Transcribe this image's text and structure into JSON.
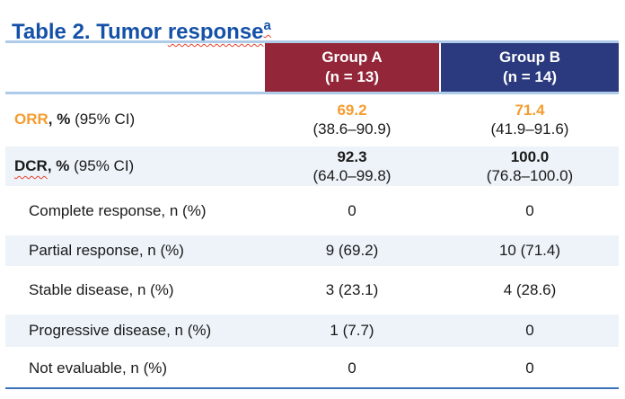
{
  "title": {
    "prefix": "Table 2. Tumor ",
    "flagged_word": "response",
    "superscript": "a"
  },
  "colors": {
    "title_blue": "#1551A8",
    "group_a_bg": "#942639",
    "group_b_bg": "#2B3A7E",
    "row_alt_bg": "#EDF3F9",
    "rule_light": "#AECBE8",
    "rule_bottom": "#3C72B8",
    "accent_orange": "#F59C2E",
    "header_text": "#FFFFFF",
    "body_text": "#1A1A1A",
    "squiggle_red": "#E5432E"
  },
  "table": {
    "header": {
      "group_a": {
        "name": "Group A",
        "n": "(n = 13)"
      },
      "group_b": {
        "name": "Group B",
        "n": "(n = 14)"
      }
    },
    "rows": [
      {
        "label_em": "ORR",
        "label_bold": ", %",
        "label_rest": " (95% CI)",
        "group_a": {
          "value": "69.2",
          "ci": "(38.6–90.9)"
        },
        "group_b": {
          "value": "71.4",
          "ci": "(41.9–91.6)"
        }
      },
      {
        "label_em": "DCR",
        "label_bold": ", %",
        "label_rest": " (95% CI)",
        "group_a": {
          "value": "92.3",
          "ci": "(64.0–99.8)"
        },
        "group_b": {
          "value": "100.0",
          "ci": "(76.8–100.0)"
        }
      },
      {
        "label": "Complete response, n (%)",
        "group_a": "0",
        "group_b": "0"
      },
      {
        "label": "Partial response, n (%)",
        "group_a": "9 (69.2)",
        "group_b": "10 (71.4)"
      },
      {
        "label": "Stable disease, n (%)",
        "group_a": "3 (23.1)",
        "group_b": "4 (28.6)"
      },
      {
        "label": "Progressive disease, n (%)",
        "group_a": "1 (7.7)",
        "group_b": "0"
      },
      {
        "label": "Not evaluable, n (%)",
        "group_a": "0",
        "group_b": "0"
      }
    ]
  }
}
